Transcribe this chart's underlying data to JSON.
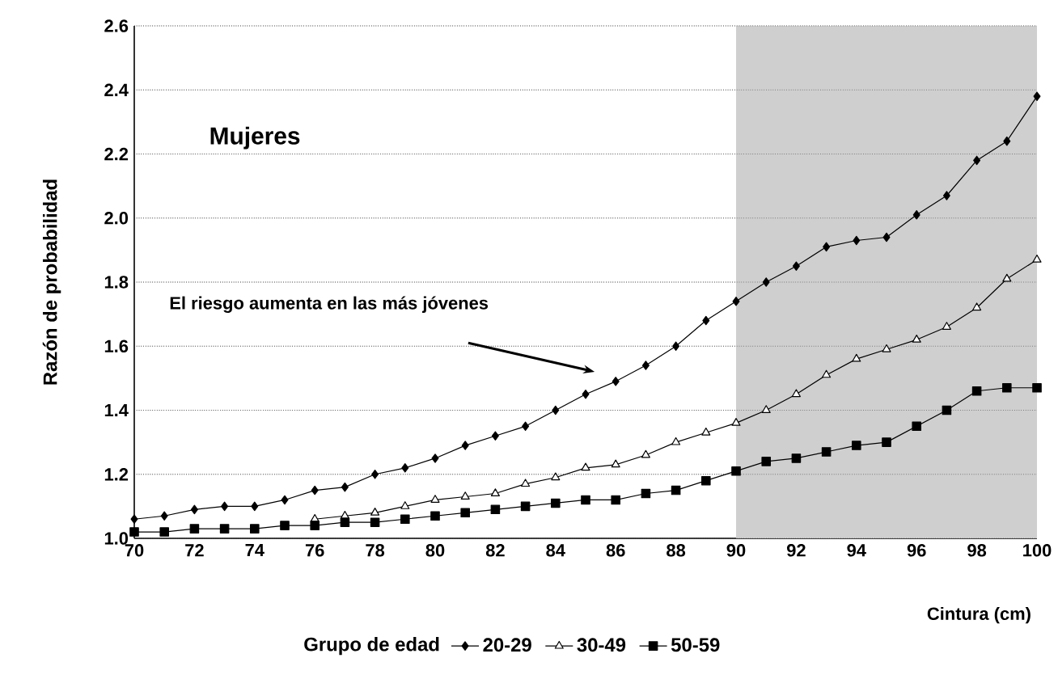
{
  "chart_data": {
    "type": "line",
    "xlabel": "Cintura (cm)",
    "ylabel": "Razón de probabilidad",
    "legend_title": "Grupo de edad",
    "legend": "bottom",
    "grid": "y",
    "x": [
      70,
      71,
      72,
      73,
      74,
      75,
      76,
      77,
      78,
      79,
      80,
      81,
      82,
      83,
      84,
      85,
      86,
      87,
      88,
      89,
      90,
      91,
      92,
      93,
      94,
      95,
      96,
      97,
      98,
      99,
      100
    ],
    "xlim": [
      70,
      100
    ],
    "xticks": [
      70,
      72,
      74,
      76,
      78,
      80,
      82,
      84,
      86,
      88,
      90,
      92,
      94,
      96,
      98,
      100
    ],
    "ylim": [
      1.0,
      2.6
    ],
    "yticks": [
      {
        "value": 1.0,
        "label": "1.0"
      },
      1.2,
      1.4,
      1.6,
      1.8,
      {
        "value": 2.0,
        "label": "2.0"
      },
      2.2,
      2.4,
      2.6
    ],
    "series": [
      {
        "name": "20-29",
        "color": "#000000",
        "marker": "diamond",
        "values": [
          1.06,
          1.07,
          1.09,
          1.1,
          1.1,
          1.12,
          1.15,
          1.16,
          1.2,
          1.22,
          1.25,
          1.29,
          1.32,
          1.35,
          1.4,
          1.45,
          1.49,
          1.54,
          1.6,
          1.68,
          1.74,
          1.8,
          1.85,
          1.91,
          1.93,
          1.94,
          2.01,
          2.07,
          2.18,
          2.24,
          2.38
        ]
      },
      {
        "name": "30-49",
        "color": "#000000",
        "marker": "triangle",
        "values": [
          null,
          null,
          null,
          null,
          null,
          null,
          1.06,
          1.07,
          1.08,
          1.1,
          1.12,
          1.13,
          1.14,
          1.17,
          1.19,
          1.22,
          1.23,
          1.26,
          1.3,
          1.33,
          1.36,
          1.4,
          1.45,
          1.51,
          1.56,
          1.59,
          1.62,
          1.66,
          1.72,
          1.81,
          1.87
        ]
      },
      {
        "name": "50-59",
        "color": "#000000",
        "marker": "square",
        "values": [
          1.02,
          1.02,
          1.03,
          1.03,
          1.03,
          1.04,
          1.04,
          1.05,
          1.05,
          1.06,
          1.07,
          1.08,
          1.09,
          1.1,
          1.11,
          1.12,
          1.12,
          1.14,
          1.15,
          1.18,
          1.21,
          1.24,
          1.25,
          1.27,
          1.29,
          1.3,
          1.35,
          1.4,
          1.46,
          1.47,
          1.47
        ]
      }
    ],
    "bands": [
      {
        "axis": "x",
        "from": 90,
        "to": 100,
        "color": "#cfcfcf"
      }
    ],
    "annotations": [
      "Mujeres",
      "El riesgo aumenta en las más jóvenes"
    ]
  }
}
